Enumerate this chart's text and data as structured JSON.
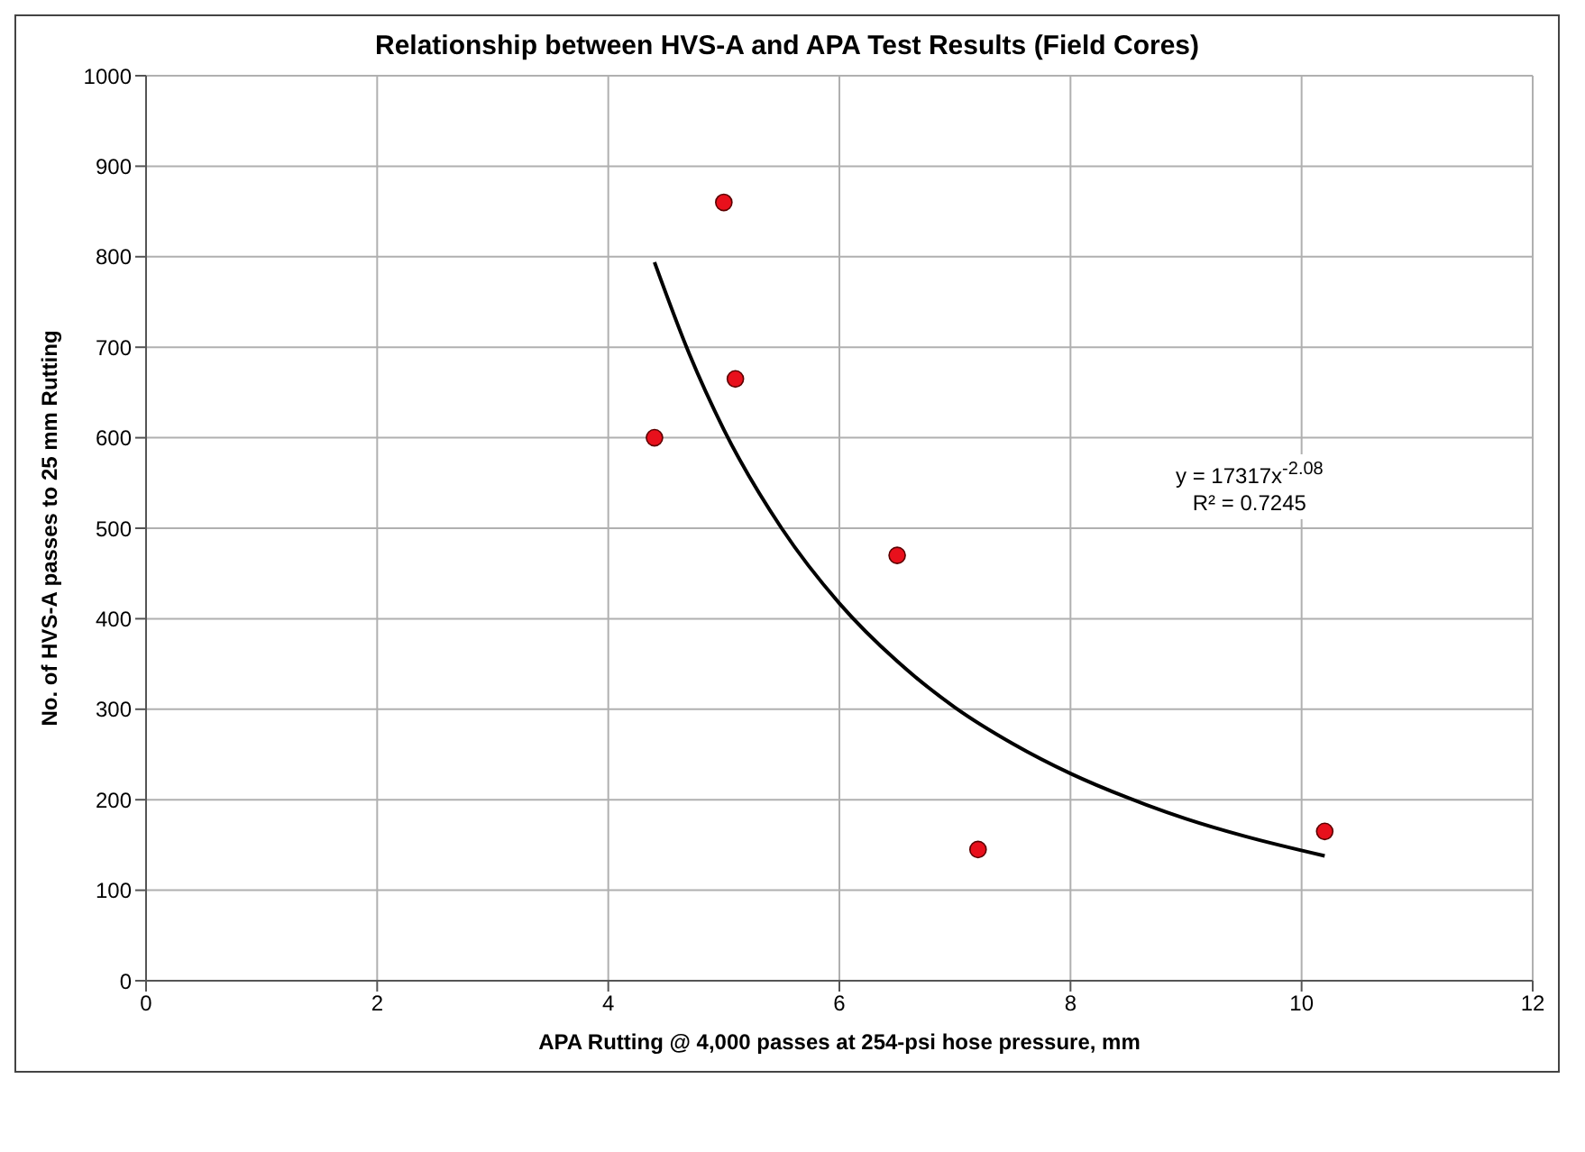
{
  "chart_data": {
    "type": "scatter",
    "title": "Relationship between HVS-A and APA Test Results (Field Cores)",
    "xlabel": "APA Rutting @ 4,000 passes at 254-psi hose pressure, mm",
    "ylabel": "No. of HVS-A passes to 25 mm Rutting",
    "xlim": [
      0,
      12
    ],
    "xticks": [
      0,
      2,
      4,
      6,
      8,
      10,
      12
    ],
    "ylim": [
      0,
      1000
    ],
    "yticks": [
      0,
      100,
      200,
      300,
      400,
      500,
      600,
      700,
      800,
      900,
      1000
    ],
    "grid": true,
    "series": [
      {
        "marker": "circle",
        "color": "#e8101c",
        "x": [
          4.4,
          5.0,
          5.1,
          6.5,
          7.2,
          10.2
        ],
        "values": [
          600,
          860,
          665,
          470,
          145,
          165
        ]
      },
      {
        "type": "line",
        "marker": "none",
        "color": "#000000",
        "x": [
          4.4,
          4.7,
          5.0,
          5.5,
          6.0,
          6.5,
          7.0,
          7.5,
          8.0,
          8.5,
          9.0,
          9.5,
          10.2
        ],
        "values": [
          794,
          693,
          609,
          500,
          417,
          353,
          302,
          262,
          229,
          202,
          179,
          160,
          138
        ]
      }
    ],
    "annotations": [
      "y = 17317x$^{-2.08}$",
      "R² = 0.7245"
    ]
  }
}
